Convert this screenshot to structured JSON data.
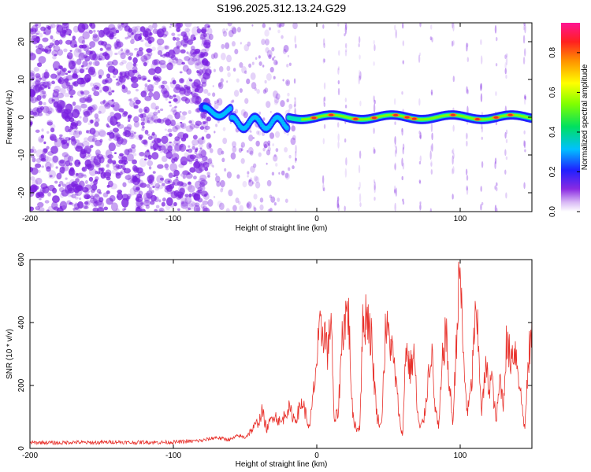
{
  "title": "S196.2025.312.13.24.G29",
  "colors": {
    "snr_line": "#e8302a",
    "track_core": "#e8302a",
    "noise": "#7a1fe0",
    "axis": "#000000"
  },
  "chart_data": [
    {
      "type": "heatmap",
      "name": "spectrogram",
      "xlabel": "Height of straight line (km)",
      "ylabel": "Frequency (Hz)",
      "xlim": [
        -200,
        150
      ],
      "ylim": [
        -25,
        25
      ],
      "x_ticks": [
        -200,
        -100,
        0,
        100
      ],
      "x_tick_labels": [
        "-200",
        "-100",
        "0",
        "100"
      ],
      "y_ticks": [
        -20,
        -10,
        0,
        10,
        20
      ],
      "y_tick_labels": [
        "-20",
        "-10",
        "0",
        "10",
        "20"
      ],
      "track_frequency_hz": 0,
      "track_start_km": -80,
      "colorbar": {
        "label": "Normalized spectral amplitude",
        "range": [
          0,
          0.95
        ],
        "ticks": [
          0.0,
          0.2,
          0.4,
          0.6,
          0.8
        ],
        "tick_labels": [
          "0.0",
          "0.2",
          "0.4",
          "0.6",
          "0.8"
        ]
      }
    },
    {
      "type": "line",
      "name": "snr",
      "xlabel": "Height of straight line (km)",
      "ylabel": "SNR (10 * v/v)",
      "xlim": [
        -200,
        150
      ],
      "ylim": [
        0,
        600
      ],
      "x_ticks": [
        -200,
        -100,
        0,
        100
      ],
      "x_tick_labels": [
        "-200",
        "-100",
        "0",
        "100"
      ],
      "y_ticks": [
        0,
        200,
        400,
        600
      ],
      "y_tick_labels": [
        "0",
        "200",
        "400",
        "600"
      ],
      "x": [
        -200,
        -190,
        -180,
        -170,
        -160,
        -150,
        -140,
        -130,
        -120,
        -110,
        -100,
        -90,
        -80,
        -75,
        -70,
        -65,
        -60,
        -55,
        -50,
        -45,
        -40,
        -38,
        -35,
        -30,
        -25,
        -20,
        -15,
        -10,
        -5,
        0,
        2,
        5,
        8,
        10,
        12,
        15,
        18,
        20,
        22,
        25,
        28,
        30,
        32,
        35,
        38,
        40,
        42,
        45,
        48,
        50,
        52,
        55,
        58,
        60,
        62,
        65,
        68,
        70,
        72,
        75,
        78,
        80,
        82,
        85,
        88,
        90,
        92,
        95,
        98,
        100,
        102,
        105,
        108,
        110,
        112,
        115,
        118,
        120,
        122,
        125,
        128,
        130,
        132,
        135,
        138,
        140,
        142,
        145,
        148,
        150
      ],
      "values": [
        18,
        19,
        17,
        20,
        18,
        19,
        21,
        18,
        20,
        19,
        20,
        22,
        25,
        30,
        35,
        30,
        28,
        40,
        35,
        60,
        90,
        120,
        60,
        110,
        80,
        130,
        90,
        150,
        60,
        280,
        360,
        380,
        300,
        450,
        80,
        120,
        380,
        420,
        440,
        100,
        60,
        70,
        380,
        440,
        350,
        220,
        100,
        70,
        380,
        360,
        330,
        220,
        80,
        40,
        330,
        250,
        300,
        120,
        60,
        100,
        240,
        320,
        150,
        60,
        300,
        380,
        220,
        80,
        420,
        580,
        300,
        110,
        200,
        400,
        380,
        120,
        260,
        190,
        230,
        80,
        230,
        130,
        330,
        290,
        320,
        270,
        180,
        60,
        300,
        360
      ]
    }
  ]
}
